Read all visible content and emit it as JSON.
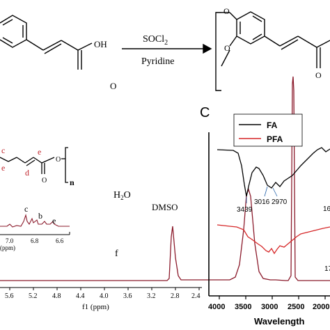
{
  "scheme": {
    "reagent_top_main": "SOCl",
    "reagent_top_sub": "2",
    "reagent_bottom": "Pyridine",
    "oh_label": "OH",
    "o_label": "O",
    "polymer_o_top": "O",
    "polymer_o_side": "O"
  },
  "structure_inset": {
    "labels": [
      "c",
      "e",
      "d",
      "e"
    ],
    "repeat_n": "n",
    "ester_o": "O"
  },
  "nmr": {
    "peak_labels": {
      "water_main": "H",
      "water_sub": "2",
      "water_tail": "O",
      "dmso": "DMSO",
      "f": "f"
    },
    "inset": {
      "peak_labels": [
        "c",
        "b",
        "e"
      ],
      "ticks": [
        "7.0",
        "6.8",
        "6.6"
      ],
      "unit": "(ppm)"
    },
    "chart_data": {
      "type": "line",
      "x_ticks": [
        "5.6",
        "5.2",
        "4.8",
        "4.4",
        "4.0",
        "3.6",
        "3.2",
        "2.8",
        "2.4"
      ],
      "xlabel": "f1 (ppm)",
      "peaks": [
        {
          "shift": 3.85,
          "label": "f"
        },
        {
          "shift": 3.33,
          "label": "H2O"
        },
        {
          "shift": 2.5,
          "label": "DMSO"
        }
      ]
    },
    "color": "#8b1a2b"
  },
  "ftir": {
    "panel_label": "C",
    "legend": [
      {
        "name": "FA",
        "color": "#000000"
      },
      {
        "name": "PFA",
        "color": "#d62728"
      }
    ],
    "annotations": [
      "3439",
      "3016",
      "2970",
      "16",
      "17"
    ],
    "chart_data": {
      "type": "line",
      "x_ticks": [
        "4000",
        "3500",
        "3000",
        "2500",
        "2000"
      ],
      "xlabel": "Wavelength",
      "series": [
        {
          "name": "FA",
          "color": "#000000"
        },
        {
          "name": "PFA",
          "color": "#d62728"
        }
      ]
    }
  }
}
